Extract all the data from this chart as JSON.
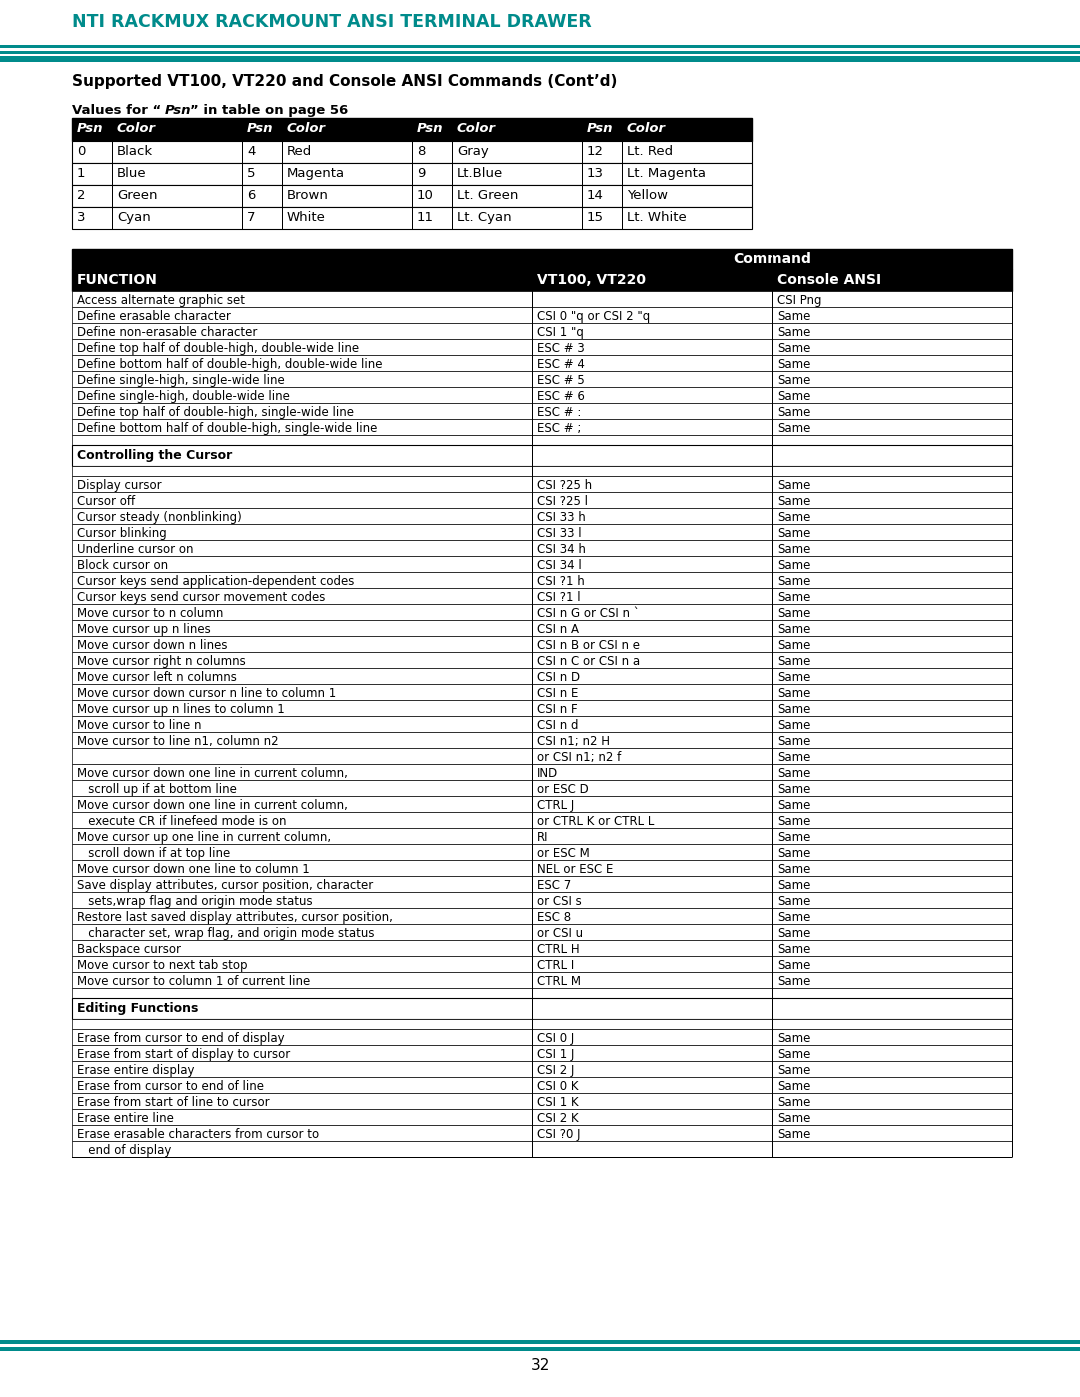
{
  "header_text": "NTI RACKMUX RACKMOUNT ANSI TERMINAL DRAWER",
  "header_color": "#008B8B",
  "teal_bar_color": "#008B8B",
  "teal_dark": "#006666",
  "section_title": "Supported VT100, VT220 and Console ANSI Commands (Cont’d)",
  "psn_table_header": [
    "Psn",
    "Color",
    "Psn",
    "Color",
    "Psn",
    "Color",
    "Psn",
    "Color"
  ],
  "psn_table_header_bg": "#000000",
  "psn_table_header_fg": "#ffffff",
  "psn_table_rows": [
    [
      "0",
      "Black",
      "4",
      "Red",
      "8",
      "Gray",
      "12",
      "Lt. Red"
    ],
    [
      "1",
      "Blue",
      "5",
      "Magenta",
      "9",
      "Lt.Blue",
      "13",
      "Lt. Magenta"
    ],
    [
      "2",
      "Green",
      "6",
      "Brown",
      "10",
      "Lt. Green",
      "14",
      "Yellow"
    ],
    [
      "3",
      "Cyan",
      "7",
      "White",
      "11",
      "Lt. Cyan",
      "15",
      "Lt. White"
    ]
  ],
  "main_table_col_headers": [
    "FUNCTION",
    "VT100, VT220",
    "Console ANSI"
  ],
  "main_table_super_header": "Command",
  "main_table_header_bg": "#000000",
  "main_table_header_fg": "#ffffff",
  "main_table_rows": [
    [
      "Access alternate graphic set",
      "",
      "CSI Png"
    ],
    [
      "Define erasable character",
      "CSI 0 \"q or CSI 2 \"q",
      "Same"
    ],
    [
      "Define non-erasable character",
      "CSI 1 \"q",
      "Same"
    ],
    [
      "Define top half of double-high, double-wide line",
      "ESC # 3",
      "Same"
    ],
    [
      "Define bottom half of double-high, double-wide line",
      "ESC # 4",
      "Same"
    ],
    [
      "Define single-high, single-wide line",
      "ESC # 5",
      "Same"
    ],
    [
      "Define single-high, double-wide line",
      "ESC # 6",
      "Same"
    ],
    [
      "Define top half of double-high, single-wide line",
      "ESC # :",
      "Same"
    ],
    [
      "Define bottom half of double-high, single-wide line",
      "ESC # ;",
      "Same"
    ]
  ],
  "cursor_section_header": "Controlling the Cursor",
  "cursor_rows": [
    [
      "Display cursor",
      "CSI ?25 h",
      "Same"
    ],
    [
      "Cursor off",
      "CSI ?25 l",
      "Same"
    ],
    [
      "Cursor steady (nonblinking)",
      "CSI 33 h",
      "Same"
    ],
    [
      "Cursor blinking",
      "CSI 33 l",
      "Same"
    ],
    [
      "Underline cursor on",
      "CSI 34 h",
      "Same"
    ],
    [
      "Block cursor on",
      "CSI 34 l",
      "Same"
    ],
    [
      "Cursor keys send application-dependent codes",
      "CSI ?1 h",
      "Same"
    ],
    [
      "Cursor keys send cursor movement codes",
      "CSI ?1 l",
      "Same"
    ],
    [
      "Move cursor to n column",
      "CSI n G or CSI n `",
      "Same"
    ],
    [
      "Move cursor up n lines",
      "CSI n A",
      "Same"
    ],
    [
      "Move cursor down n lines",
      "CSI n B or CSI n e",
      "Same"
    ],
    [
      "Move cursor right n columns",
      "CSI n C or CSI n a",
      "Same"
    ],
    [
      "Move cursor left n columns",
      "CSI n D",
      "Same"
    ],
    [
      "Move cursor down cursor n line to column 1",
      "CSI n E",
      "Same"
    ],
    [
      "Move cursor up n lines to column 1",
      "CSI n F",
      "Same"
    ],
    [
      "Move cursor to line n",
      "CSI n d",
      "Same"
    ],
    [
      "Move cursor to line n1, column n2",
      "CSI n1; n2 H",
      "Same"
    ],
    [
      "",
      "or CSI n1; n2 f",
      "Same"
    ],
    [
      "Move cursor down one line in current column,",
      "IND",
      "Same"
    ],
    [
      "   scroll up if at bottom line",
      "or ESC D",
      "Same"
    ],
    [
      "Move cursor down one line in current column,",
      "CTRL J",
      "Same"
    ],
    [
      "   execute CR if linefeed mode is on",
      "or CTRL K or CTRL L",
      "Same"
    ],
    [
      "Move cursor up one line in current column,",
      "RI",
      "Same"
    ],
    [
      "   scroll down if at top line",
      "or ESC M",
      "Same"
    ],
    [
      "Move cursor down one line to column 1",
      "NEL or ESC E",
      "Same"
    ],
    [
      "Save display attributes, cursor position, character",
      "ESC 7",
      "Same"
    ],
    [
      "   sets,wrap flag and origin mode status",
      "or CSI s",
      "Same"
    ],
    [
      "Restore last saved display attributes, cursor position,",
      "ESC 8",
      "Same"
    ],
    [
      "   character set, wrap flag, and origin mode status",
      "or CSI u",
      "Same"
    ],
    [
      "Backspace cursor",
      "CTRL H",
      "Same"
    ],
    [
      "Move cursor to next tab stop",
      "CTRL I",
      "Same"
    ],
    [
      "Move cursor to column 1 of current line",
      "CTRL M",
      "Same"
    ]
  ],
  "editing_section_header": "Editing Functions",
  "editing_rows": [
    [
      "Erase from cursor to end of display",
      "CSI 0 J",
      "Same"
    ],
    [
      "Erase from start of display to cursor",
      "CSI 1 J",
      "Same"
    ],
    [
      "Erase entire display",
      "CSI 2 J",
      "Same"
    ],
    [
      "Erase from cursor to end of line",
      "CSI 0 K",
      "Same"
    ],
    [
      "Erase from start of line to cursor",
      "CSI 1 K",
      "Same"
    ],
    [
      "Erase entire line",
      "CSI 2 K",
      "Same"
    ],
    [
      "Erase erasable characters from cursor to",
      "CSI ?0 J",
      "Same"
    ],
    [
      "   end of display",
      "",
      ""
    ]
  ],
  "page_number": "32",
  "bg_color": "#ffffff",
  "text_color": "#000000",
  "table_border_color": "#000000"
}
